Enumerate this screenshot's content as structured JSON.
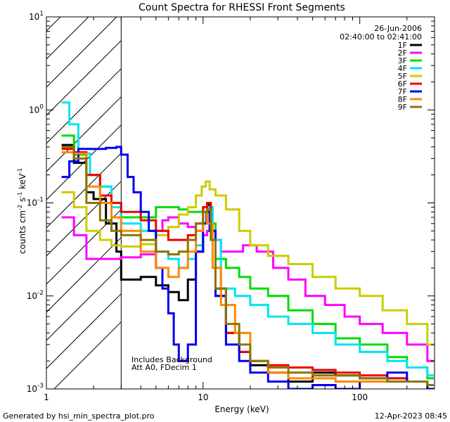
{
  "chart_data": {
    "type": "line",
    "title": "Count Spectra for RHESSI Front Segments",
    "xlabel": "Energy (keV)",
    "ylabel_parts": {
      "base": "counts cm",
      "exp1": "-2",
      "mid1": " s",
      "exp2": "-1",
      "mid2": " keV",
      "exp3": "-1"
    },
    "xscale": "log",
    "yscale": "log",
    "xlim": [
      1,
      300
    ],
    "ylim": [
      0.001,
      10
    ],
    "x_ticks": [
      {
        "value": 1,
        "label": "1"
      },
      {
        "value": 10,
        "label": "10"
      },
      {
        "value": 100,
        "label": "100"
      }
    ],
    "y_ticks": [
      {
        "value": 10,
        "base": "10",
        "exp": "1"
      },
      {
        "value": 1,
        "base": "10",
        "exp": "0"
      },
      {
        "value": 0.1,
        "base": "10",
        "exp": "-1"
      },
      {
        "value": 0.01,
        "base": "10",
        "exp": "-2"
      },
      {
        "value": 0.001,
        "base": "10",
        "exp": "-3"
      }
    ],
    "hatched_region": {
      "x_from": 1,
      "x_to": 3
    },
    "date": "26-Jun-2006",
    "time_range": "02:40:00 to 02:41:00",
    "annotations": [
      "Includes Background",
      "Att A0, FDecim 1"
    ],
    "legend_position": "top-right",
    "series": [
      {
        "name": "1F",
        "color": "#000000",
        "points": [
          [
            1.25,
            0.42
          ],
          [
            1.5,
            0.27
          ],
          [
            1.8,
            0.13
          ],
          [
            2.0,
            0.11
          ],
          [
            2.4,
            0.06
          ],
          [
            2.8,
            0.03
          ],
          [
            3,
            0.015
          ],
          [
            4,
            0.016
          ],
          [
            5,
            0.013
          ],
          [
            6,
            0.011
          ],
          [
            7,
            0.009
          ],
          [
            8,
            0.015
          ],
          [
            9,
            0.03
          ],
          [
            10,
            0.06
          ],
          [
            10.6,
            0.095
          ],
          [
            11.2,
            0.05
          ],
          [
            12,
            0.012
          ],
          [
            14,
            0.004
          ],
          [
            17,
            0.0025
          ],
          [
            20,
            0.0018
          ],
          [
            26,
            0.0015
          ],
          [
            35,
            0.0012
          ],
          [
            50,
            0.0015
          ],
          [
            70,
            0.0014
          ],
          [
            100,
            0.0013
          ],
          [
            150,
            0.0013
          ],
          [
            200,
            0.0012
          ],
          [
            270,
            0.0011
          ]
        ]
      },
      {
        "name": "2F",
        "color": "#ff00ff",
        "points": [
          [
            1.25,
            0.07
          ],
          [
            1.5,
            0.045
          ],
          [
            1.8,
            0.025
          ],
          [
            2.2,
            0.025
          ],
          [
            2.6,
            0.025
          ],
          [
            3,
            0.026
          ],
          [
            4,
            0.028
          ],
          [
            5,
            0.05
          ],
          [
            5.5,
            0.065
          ],
          [
            6,
            0.07
          ],
          [
            7,
            0.06
          ],
          [
            8,
            0.055
          ],
          [
            9,
            0.05
          ],
          [
            10,
            0.045
          ],
          [
            10.6,
            0.05
          ],
          [
            11.5,
            0.04
          ],
          [
            13,
            0.03
          ],
          [
            15,
            0.03
          ],
          [
            18,
            0.035
          ],
          [
            22,
            0.03
          ],
          [
            28,
            0.02
          ],
          [
            35,
            0.015
          ],
          [
            45,
            0.01
          ],
          [
            60,
            0.008
          ],
          [
            80,
            0.006
          ],
          [
            100,
            0.005
          ],
          [
            140,
            0.004
          ],
          [
            200,
            0.003
          ],
          [
            270,
            0.002
          ]
        ]
      },
      {
        "name": "3F",
        "color": "#00dd00",
        "points": [
          [
            1.25,
            0.53
          ],
          [
            1.5,
            0.33
          ],
          [
            1.8,
            0.2
          ],
          [
            2.2,
            0.15
          ],
          [
            2.6,
            0.1
          ],
          [
            3,
            0.07
          ],
          [
            4,
            0.07
          ],
          [
            5,
            0.09
          ],
          [
            6,
            0.09
          ],
          [
            7,
            0.085
          ],
          [
            8,
            0.08
          ],
          [
            9,
            0.08
          ],
          [
            10,
            0.09
          ],
          [
            10.6,
            0.1
          ],
          [
            11.2,
            0.06
          ],
          [
            12,
            0.025
          ],
          [
            14,
            0.02
          ],
          [
            17,
            0.016
          ],
          [
            20,
            0.012
          ],
          [
            26,
            0.01
          ],
          [
            35,
            0.007
          ],
          [
            50,
            0.005
          ],
          [
            70,
            0.0035
          ],
          [
            100,
            0.003
          ],
          [
            150,
            0.0022
          ],
          [
            200,
            0.0017
          ],
          [
            270,
            0.0013
          ]
        ]
      },
      {
        "name": "4F",
        "color": "#00e5ee",
        "points": [
          [
            1.25,
            1.2
          ],
          [
            1.4,
            0.7
          ],
          [
            1.6,
            0.34
          ],
          [
            1.9,
            0.2
          ],
          [
            2.2,
            0.15
          ],
          [
            2.6,
            0.09
          ],
          [
            3,
            0.06
          ],
          [
            4,
            0.05
          ],
          [
            5,
            0.03
          ],
          [
            6,
            0.025
          ],
          [
            7,
            0.02
          ],
          [
            8,
            0.025
          ],
          [
            9,
            0.035
          ],
          [
            10,
            0.06
          ],
          [
            10.6,
            0.09
          ],
          [
            11.5,
            0.04
          ],
          [
            13,
            0.012
          ],
          [
            16,
            0.01
          ],
          [
            20,
            0.008
          ],
          [
            26,
            0.006
          ],
          [
            35,
            0.005
          ],
          [
            50,
            0.004
          ],
          [
            70,
            0.003
          ],
          [
            100,
            0.0025
          ],
          [
            150,
            0.002
          ],
          [
            200,
            0.0017
          ],
          [
            270,
            0.0014
          ]
        ]
      },
      {
        "name": "5F",
        "color": "#cccc00",
        "points": [
          [
            1.25,
            0.13
          ],
          [
            1.5,
            0.09
          ],
          [
            1.8,
            0.05
          ],
          [
            2.2,
            0.04
          ],
          [
            2.6,
            0.035
          ],
          [
            3,
            0.034
          ],
          [
            4,
            0.036
          ],
          [
            5,
            0.045
          ],
          [
            6,
            0.055
          ],
          [
            7,
            0.075
          ],
          [
            8,
            0.09
          ],
          [
            9,
            0.12
          ],
          [
            9.8,
            0.15
          ],
          [
            10.4,
            0.17
          ],
          [
            11,
            0.14
          ],
          [
            12,
            0.12
          ],
          [
            14,
            0.085
          ],
          [
            17,
            0.05
          ],
          [
            20,
            0.035
          ],
          [
            26,
            0.027
          ],
          [
            35,
            0.022
          ],
          [
            50,
            0.016
          ],
          [
            70,
            0.012
          ],
          [
            100,
            0.01
          ],
          [
            140,
            0.007
          ],
          [
            200,
            0.005
          ],
          [
            270,
            0.003
          ]
        ]
      },
      {
        "name": "6F",
        "color": "#ee0000",
        "points": [
          [
            1.25,
            0.38
          ],
          [
            1.5,
            0.35
          ],
          [
            1.8,
            0.2
          ],
          [
            2.2,
            0.12
          ],
          [
            2.6,
            0.1
          ],
          [
            3,
            0.08
          ],
          [
            4,
            0.065
          ],
          [
            5,
            0.05
          ],
          [
            6,
            0.04
          ],
          [
            7,
            0.04
          ],
          [
            8,
            0.045
          ],
          [
            9,
            0.06
          ],
          [
            10,
            0.09
          ],
          [
            10.6,
            0.1
          ],
          [
            11.2,
            0.05
          ],
          [
            12,
            0.01
          ],
          [
            14,
            0.004
          ],
          [
            17,
            0.0025
          ],
          [
            20,
            0.002
          ],
          [
            26,
            0.0018
          ],
          [
            35,
            0.0017
          ],
          [
            50,
            0.0016
          ],
          [
            70,
            0.0015
          ],
          [
            100,
            0.0014
          ],
          [
            150,
            0.0013
          ],
          [
            200,
            0.0012
          ],
          [
            270,
            0.0011
          ]
        ]
      },
      {
        "name": "7F",
        "color": "#0000ee",
        "points": [
          [
            1.25,
            0.19
          ],
          [
            1.4,
            0.28
          ],
          [
            1.6,
            0.38
          ],
          [
            2.0,
            0.38
          ],
          [
            2.4,
            0.39
          ],
          [
            2.8,
            0.4
          ],
          [
            3,
            0.33
          ],
          [
            3.3,
            0.19
          ],
          [
            3.6,
            0.13
          ],
          [
            4,
            0.08
          ],
          [
            4.5,
            0.05
          ],
          [
            5,
            0.02
          ],
          [
            5.5,
            0.012
          ],
          [
            6,
            0.0065
          ],
          [
            6.5,
            0.003
          ],
          [
            7,
            0.002
          ],
          [
            8,
            0.003
          ],
          [
            9,
            0.03
          ],
          [
            10,
            0.06
          ],
          [
            10.5,
            0.08
          ],
          [
            11,
            0.05
          ],
          [
            12,
            0.01
          ],
          [
            14,
            0.003
          ],
          [
            17,
            0.002
          ],
          [
            20,
            0.0015
          ],
          [
            26,
            0.0012
          ],
          [
            35,
            0.001
          ],
          [
            50,
            0.0011
          ],
          [
            70,
            0.001
          ],
          [
            100,
            0.0012
          ],
          [
            150,
            0.0015
          ],
          [
            200,
            0.0012
          ],
          [
            270,
            0.001
          ]
        ]
      },
      {
        "name": "8F",
        "color": "#ff8800",
        "points": [
          [
            1.25,
            0.35
          ],
          [
            1.5,
            0.34
          ],
          [
            1.8,
            0.15
          ],
          [
            2.2,
            0.1
          ],
          [
            2.6,
            0.07
          ],
          [
            3,
            0.05
          ],
          [
            4,
            0.03
          ],
          [
            5,
            0.02
          ],
          [
            6,
            0.016
          ],
          [
            7,
            0.02
          ],
          [
            8,
            0.03
          ],
          [
            9,
            0.05
          ],
          [
            10,
            0.08
          ],
          [
            10.6,
            0.06
          ],
          [
            11.5,
            0.02
          ],
          [
            13,
            0.008
          ],
          [
            16,
            0.004
          ],
          [
            20,
            0.002
          ],
          [
            26,
            0.0015
          ],
          [
            35,
            0.0013
          ],
          [
            50,
            0.0013
          ],
          [
            70,
            0.0012
          ],
          [
            100,
            0.0012
          ],
          [
            150,
            0.0012
          ],
          [
            200,
            0.0012
          ],
          [
            270,
            0.0011
          ]
        ]
      },
      {
        "name": "9F",
        "color": "#8b7500",
        "points": [
          [
            1.25,
            0.4
          ],
          [
            1.5,
            0.3
          ],
          [
            1.8,
            0.1
          ],
          [
            2.2,
            0.065
          ],
          [
            2.6,
            0.05
          ],
          [
            3,
            0.045
          ],
          [
            4,
            0.04
          ],
          [
            5,
            0.03
          ],
          [
            6,
            0.028
          ],
          [
            7,
            0.03
          ],
          [
            8,
            0.04
          ],
          [
            9,
            0.06
          ],
          [
            10,
            0.08
          ],
          [
            10.6,
            0.085
          ],
          [
            11.2,
            0.04
          ],
          [
            12,
            0.012
          ],
          [
            14,
            0.005
          ],
          [
            17,
            0.003
          ],
          [
            20,
            0.002
          ],
          [
            26,
            0.0017
          ],
          [
            35,
            0.0015
          ],
          [
            50,
            0.0014
          ],
          [
            70,
            0.0014
          ],
          [
            100,
            0.0013
          ],
          [
            150,
            0.0012
          ],
          [
            200,
            0.0012
          ],
          [
            270,
            0.0011
          ]
        ]
      }
    ]
  },
  "footer": {
    "generated_by": "Generated by hsi_min_spectra_plot.pro",
    "timestamp": "12-Apr-2023 08:45"
  }
}
